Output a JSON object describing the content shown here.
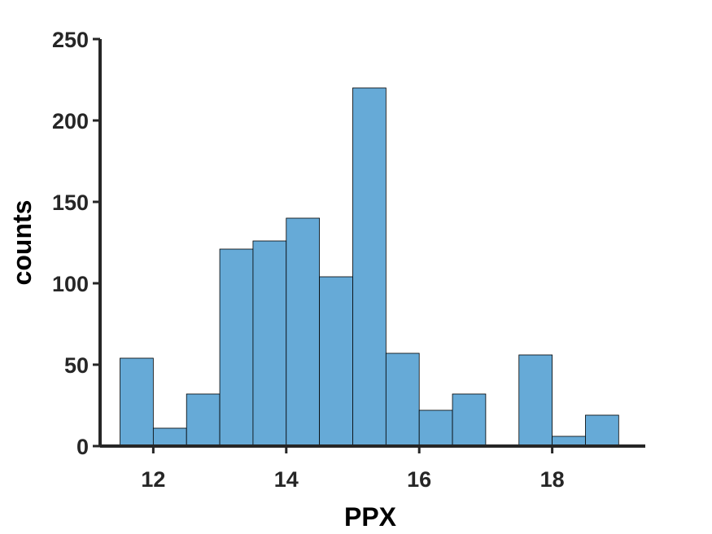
{
  "chart_data": {
    "type": "bar",
    "title": "",
    "xlabel": "PPX",
    "ylabel": "counts",
    "xlim": [
      11.2,
      19.4
    ],
    "ylim": [
      0,
      250
    ],
    "x_ticks": [
      12,
      14,
      16,
      18
    ],
    "y_ticks": [
      0,
      50,
      100,
      150,
      200,
      250
    ],
    "bar_color": "#66aad7",
    "bins": [
      {
        "x0": 11.5,
        "x1": 12.0,
        "count": 54
      },
      {
        "x0": 12.0,
        "x1": 12.5,
        "count": 11
      },
      {
        "x0": 12.5,
        "x1": 13.0,
        "count": 32
      },
      {
        "x0": 13.0,
        "x1": 13.5,
        "count": 121
      },
      {
        "x0": 13.5,
        "x1": 14.0,
        "count": 126
      },
      {
        "x0": 14.0,
        "x1": 14.5,
        "count": 140
      },
      {
        "x0": 14.5,
        "x1": 15.0,
        "count": 104
      },
      {
        "x0": 15.0,
        "x1": 15.5,
        "count": 220
      },
      {
        "x0": 15.5,
        "x1": 16.0,
        "count": 57
      },
      {
        "x0": 16.0,
        "x1": 16.5,
        "count": 22
      },
      {
        "x0": 16.5,
        "x1": 17.0,
        "count": 32
      },
      {
        "x0": 17.0,
        "x1": 17.5,
        "count": 0
      },
      {
        "x0": 17.5,
        "x1": 18.0,
        "count": 56
      },
      {
        "x0": 18.0,
        "x1": 18.5,
        "count": 6
      },
      {
        "x0": 18.5,
        "x1": 19.0,
        "count": 19
      }
    ],
    "grid": false,
    "legend": "none"
  }
}
